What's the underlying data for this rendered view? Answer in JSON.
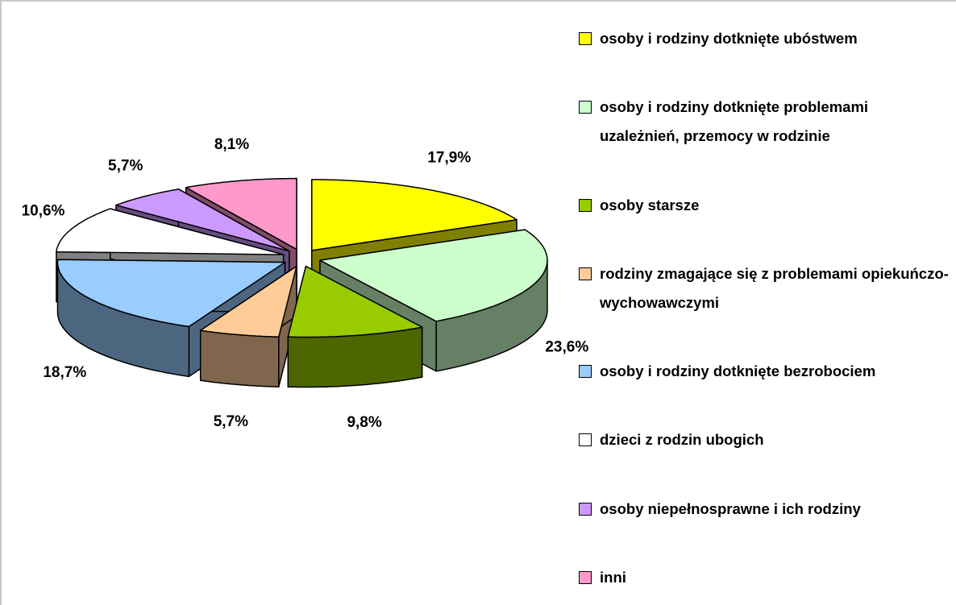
{
  "chart_data": {
    "type": "pie",
    "categories": [
      "osoby i rodziny dotknięte ubóstwem",
      "osoby i rodziny dotknięte problemami uzależnień, przemocy w rodzinie",
      "osoby starsze",
      "rodziny zmagające się z problemami opiekuńczo-wychowawczymi",
      "osoby i rodziny dotknięte bezrobociem",
      "dzieci z rodzin ubogich",
      "osoby niepełnosprawne i ich rodziny",
      "inni"
    ],
    "values": [
      17.9,
      23.6,
      9.8,
      5.7,
      18.7,
      10.6,
      5.7,
      8.1
    ],
    "value_labels": [
      "17,9%",
      "23,6%",
      "9,8%",
      "5,7%",
      "18,7%",
      "10,6%",
      "5,7%",
      "8,1%"
    ],
    "colors": [
      "#ffff00",
      "#ccffcc",
      "#99cc00",
      "#ffcc99",
      "#99ccff",
      "#ffffff",
      "#cc99ff",
      "#ff99cc"
    ],
    "legend": "right"
  }
}
